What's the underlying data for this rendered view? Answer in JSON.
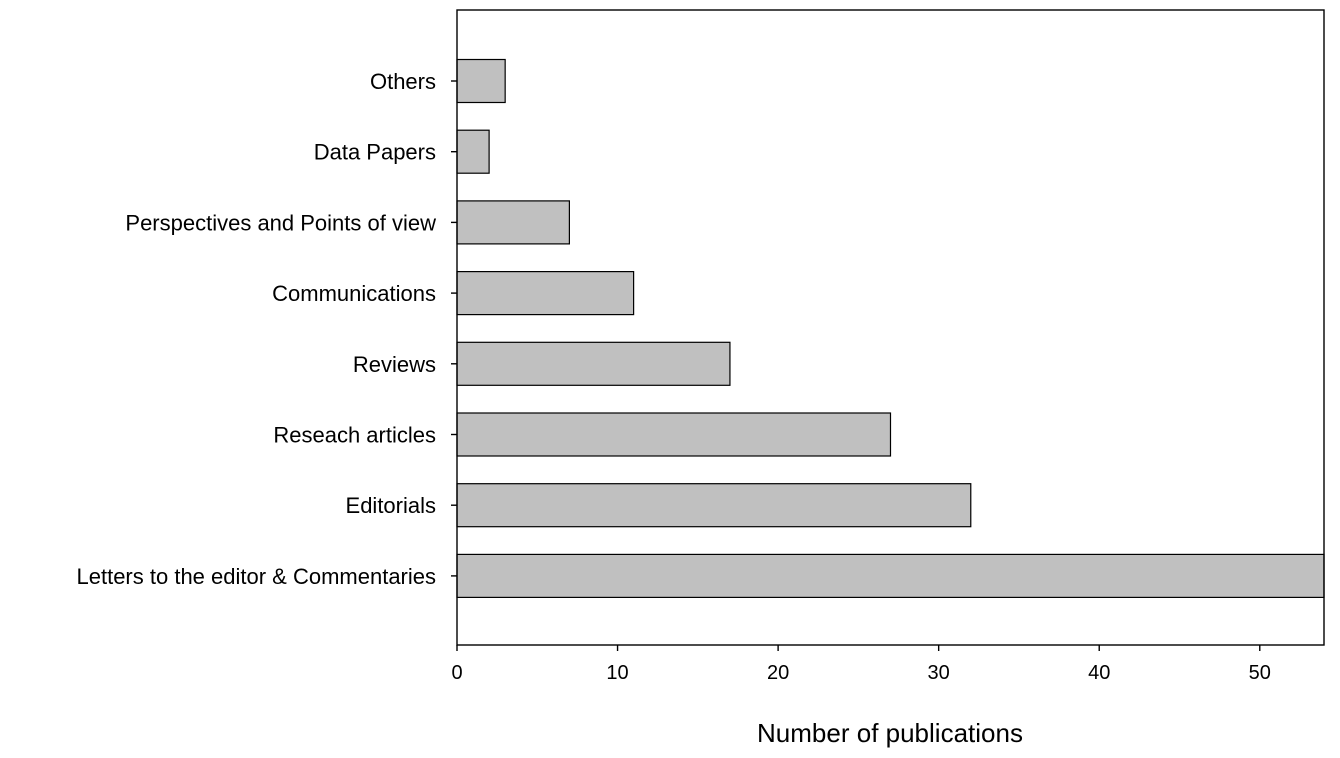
{
  "chart_data": {
    "type": "bar",
    "orientation": "horizontal",
    "title": "",
    "xlabel": "Number of publications",
    "ylabel": "",
    "categories": [
      "Others",
      "Data Papers",
      "Perspectives and Points of view",
      "Communications",
      "Reviews",
      "Reseach articles",
      "Editorials",
      "Letters to the editor & Commentaries"
    ],
    "values": [
      3,
      2,
      7,
      11,
      17,
      27,
      32,
      54
    ],
    "xlim": [
      0,
      54
    ],
    "xticks": [
      0,
      10,
      20,
      30,
      40,
      50
    ],
    "grid": false,
    "legend": "none",
    "bar_color": "#c0c0c0",
    "edge_color": "#000000"
  }
}
